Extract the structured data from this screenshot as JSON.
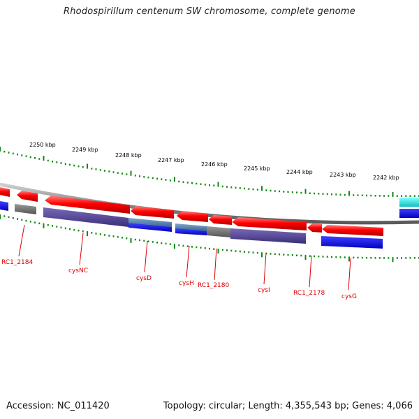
{
  "title": "Rhodospirillum centenum SW chromosome, complete genome",
  "accession": "Accession: NC_011420",
  "summary": "Topology: circular; Length: 4,355,543 bp; Genes: 4,066",
  "colors": {
    "backbone": "#8c8c8c",
    "forward_gene": "#ff0000",
    "reverse_bar": "#0000ee",
    "grey_bar": "#777777",
    "purple_bar": "#5a4a9a",
    "steel_bar": "#5a86b0",
    "cyan_bar": "#20e0e0",
    "tick": "#118811",
    "label": "#dd0000"
  },
  "scale_labels": [
    "2250 kbp",
    "2249 kbp",
    "2248 kbp",
    "2247 kbp",
    "2246 kbp",
    "2245 kbp",
    "2244 kbp",
    "2243 kbp",
    "2242 kbp"
  ],
  "gene_labels": [
    "RC1_2184",
    "cysNC",
    "cysD",
    "cysH",
    "RC1_2180",
    "cysI",
    "RC1_2178",
    "cysG"
  ]
}
